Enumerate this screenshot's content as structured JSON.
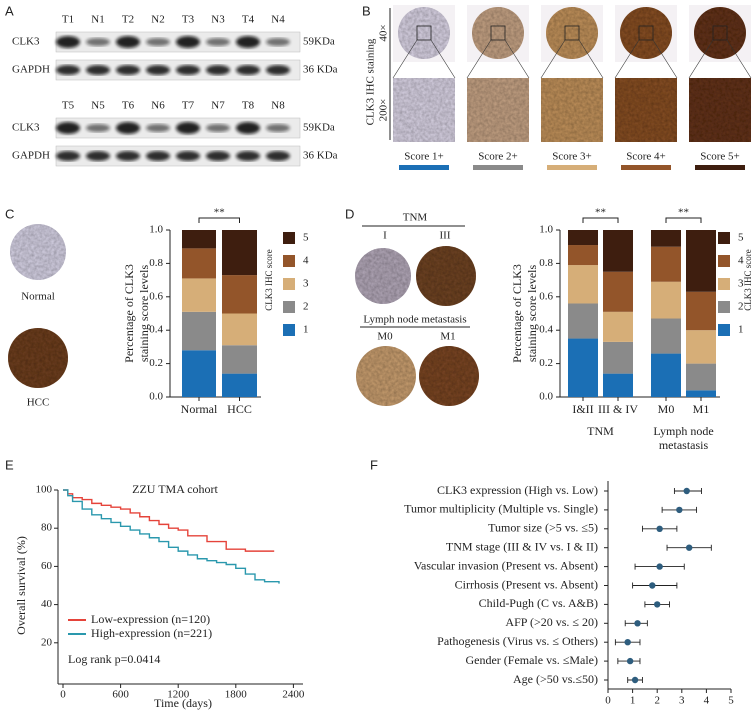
{
  "panel_labels": [
    "A",
    "B",
    "C",
    "D",
    "E",
    "F"
  ],
  "blot": {
    "lanes_top": [
      "T1",
      "N1",
      "T2",
      "N2",
      "T3",
      "N3",
      "T4",
      "N4"
    ],
    "lanes_bottom": [
      "T5",
      "N5",
      "T6",
      "N6",
      "T7",
      "N7",
      "T8",
      "N8"
    ],
    "proteins": [
      "CLK3",
      "GAPDH"
    ],
    "sizes": [
      "59KDa",
      "36 KDa"
    ]
  },
  "ihc": {
    "title": "CLK3 IHC staining",
    "magnifications": [
      "40×",
      "200×"
    ],
    "scores": [
      "Score 1+",
      "Score 2+",
      "Score 3+",
      "Score 4+",
      "Score 5+"
    ],
    "colors": [
      "#1b6fb5",
      "#8a8a8a",
      "#d6ae78",
      "#93552a",
      "#3e1e0f"
    ]
  },
  "images_c": [
    "Normal",
    "HCC"
  ],
  "images_d": {
    "tnm": "TNM",
    "tnm_stages": [
      "I",
      "III"
    ],
    "lymph": "Lymph node metastasis",
    "lymph_stages": [
      "M0",
      "M1"
    ]
  },
  "chart_data": [
    {
      "type": "stacked_bar",
      "ylabel": [
        "Percentage of CLK3",
        "staining score levels"
      ],
      "legend_title": "CLK3 IHC score",
      "categories": [
        "Normal",
        "HCC"
      ],
      "series": [
        {
          "name": "1",
          "color": "#1b6fb5",
          "values": [
            0.28,
            0.14
          ]
        },
        {
          "name": "2",
          "color": "#8a8a8a",
          "values": [
            0.23,
            0.17
          ]
        },
        {
          "name": "3",
          "color": "#d6ae78",
          "values": [
            0.2,
            0.19
          ]
        },
        {
          "name": "4",
          "color": "#93552a",
          "values": [
            0.18,
            0.23
          ]
        },
        {
          "name": "5",
          "color": "#3e1e0f",
          "values": [
            0.11,
            0.27
          ]
        }
      ],
      "ylim": [
        0,
        1
      ],
      "yticks": [
        {
          "value": 0,
          "label": "0.0"
        },
        0.2,
        0.4,
        0.6,
        0.8,
        {
          "value": 1,
          "label": "1.0"
        }
      ],
      "annotations": [
        "**"
      ]
    },
    {
      "type": "stacked_bar",
      "ylabel": [
        "Percentage of CLK3",
        "staining score levels"
      ],
      "legend_title": "CLK3 IHC score",
      "categories": [
        "I&II",
        "III & IV",
        "M0",
        "M1"
      ],
      "group_labels": [
        [
          "TNM"
        ],
        [
          "Lymph node",
          "metastasis"
        ]
      ],
      "series": [
        {
          "name": "1",
          "color": "#1b6fb5",
          "values": [
            0.35,
            0.14,
            0.26,
            0.04
          ]
        },
        {
          "name": "2",
          "color": "#8a8a8a",
          "values": [
            0.21,
            0.19,
            0.21,
            0.16
          ]
        },
        {
          "name": "3",
          "color": "#d6ae78",
          "values": [
            0.23,
            0.18,
            0.22,
            0.2
          ]
        },
        {
          "name": "4",
          "color": "#93552a",
          "values": [
            0.12,
            0.24,
            0.21,
            0.23
          ]
        },
        {
          "name": "5",
          "color": "#3e1e0f",
          "values": [
            0.09,
            0.25,
            0.1,
            0.37
          ]
        }
      ],
      "ylim": [
        0,
        1
      ],
      "yticks": [
        {
          "value": 0,
          "label": "0.0"
        },
        0.2,
        0.4,
        0.6,
        0.8,
        {
          "value": 1,
          "label": "1.0"
        }
      ],
      "annotations": [
        "**",
        "**"
      ]
    },
    {
      "type": "line",
      "step": true,
      "title": "ZZU TMA cohort",
      "xlabel": "Time (days)",
      "ylabel": "Overall survival (%)",
      "xlim": [
        0,
        2500
      ],
      "xticks": [
        0,
        600,
        1200,
        1800,
        2400
      ],
      "ylim": [
        0,
        100
      ],
      "yticks": [
        20,
        40,
        60,
        80,
        100
      ],
      "series": [
        {
          "name": "Low-expression (n=120)",
          "color": "#e5433a",
          "x": [
            0,
            50,
            100,
            200,
            300,
            400,
            500,
            600,
            700,
            800,
            900,
            1000,
            1100,
            1200,
            1300,
            1500,
            1700,
            1900,
            2200
          ],
          "values": [
            100,
            98,
            96,
            95,
            93,
            92,
            91,
            90,
            88,
            86,
            84,
            82,
            80,
            79,
            76,
            73,
            69,
            68,
            68
          ]
        },
        {
          "name": "High-expression (n=221)",
          "color": "#2a98ad",
          "x": [
            0,
            50,
            100,
            200,
            300,
            400,
            500,
            600,
            700,
            800,
            900,
            1000,
            1100,
            1200,
            1300,
            1400,
            1500,
            1600,
            1700,
            1800,
            1900,
            2000,
            2100,
            2250
          ],
          "values": [
            100,
            97,
            94,
            90,
            87,
            85,
            83,
            81,
            79,
            77,
            75,
            73,
            70,
            68,
            66,
            64,
            63,
            62,
            61,
            59,
            56,
            53,
            52,
            51
          ]
        }
      ],
      "annotation": "Log rank p=0.0414"
    },
    {
      "type": "forest",
      "color": "#2e5d7e",
      "categories": [
        "CLK3 expression (High vs. Low)",
        "Tumor multiplicity (Multiple vs. Single)",
        "Tumor size (>5 vs. ≤5)",
        "TNM stage (III & IV vs. I & II)",
        "Vascular invasion (Present vs. Absent)",
        "Cirrhosis (Present vs. Absent)",
        "Child-Pugh (C vs. A&B)",
        "AFP (>20 vs. ≤ 20)",
        "Pathogenesis (Virus vs. ≤ Others)",
        "Gender (Female vs. ≤Male)",
        "Age (>50 vs.≤50)"
      ],
      "values": [
        3.2,
        2.9,
        2.1,
        3.3,
        2.1,
        1.8,
        2.0,
        1.2,
        0.8,
        0.9,
        1.1
      ],
      "ci_low": [
        2.7,
        2.2,
        1.4,
        2.4,
        1.1,
        1.0,
        1.5,
        0.7,
        0.3,
        0.4,
        0.8
      ],
      "ci_high": [
        3.8,
        3.6,
        2.8,
        4.2,
        3.1,
        2.8,
        2.5,
        1.6,
        1.3,
        1.3,
        1.4
      ],
      "xlim": [
        0,
        5
      ],
      "xticks": [
        0,
        1,
        2,
        3,
        4,
        5
      ]
    }
  ]
}
